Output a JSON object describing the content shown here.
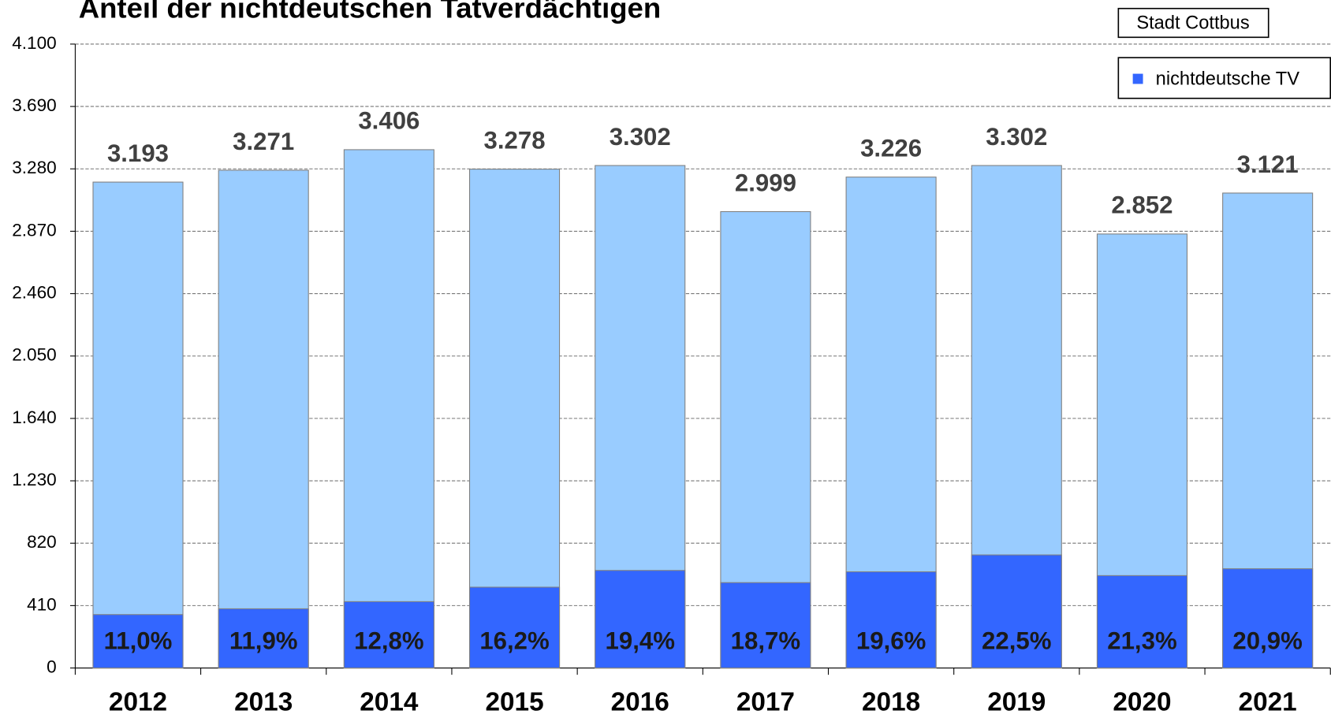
{
  "chart_data": {
    "type": "bar",
    "title": "Anteil der nichtdeutschen Tatverdächtigen",
    "annotations": [
      "Stadt Cottbus"
    ],
    "categories": [
      "2012",
      "2013",
      "2014",
      "2015",
      "2016",
      "2017",
      "2018",
      "2019",
      "2020",
      "2021"
    ],
    "totals": {
      "color": "#99ccff",
      "values": [
        3193,
        3271,
        3406,
        3278,
        3302,
        2999,
        3226,
        3302,
        2852,
        3121
      ],
      "value_labels": [
        "3.193",
        "3.271",
        "3.406",
        "3.278",
        "3.302",
        "2.999",
        "3.226",
        "3.302",
        "2.852",
        "3.121"
      ]
    },
    "series": [
      {
        "name": "nichtdeutsche TV",
        "color": "#3366ff",
        "values": [
          351,
          389,
          436,
          531,
          641,
          561,
          632,
          743,
          607,
          652
        ]
      }
    ],
    "shares": {
      "values": [
        11.0,
        11.9,
        12.8,
        16.2,
        19.4,
        18.7,
        19.6,
        22.5,
        21.3,
        20.9
      ],
      "value_labels": [
        "11,0%",
        "11,9%",
        "12,8%",
        "16,2%",
        "19,4%",
        "18,7%",
        "19,6%",
        "22,5%",
        "21,3%",
        "20,9%"
      ]
    },
    "ylim": [
      0,
      4100
    ],
    "yticks": [
      0,
      410,
      820,
      {
        "value": 1230,
        "label": "1.230"
      },
      {
        "value": 1640,
        "label": "1.640"
      },
      {
        "value": 2050,
        "label": "2.050"
      },
      {
        "value": 2460,
        "label": "2.460"
      },
      {
        "value": 2870,
        "label": "2.870"
      },
      {
        "value": 3280,
        "label": "3.280"
      },
      {
        "value": 3690,
        "label": "3.690"
      },
      {
        "value": 4100,
        "label": "4.100"
      }
    ],
    "grid": true,
    "legend": "upper right"
  }
}
